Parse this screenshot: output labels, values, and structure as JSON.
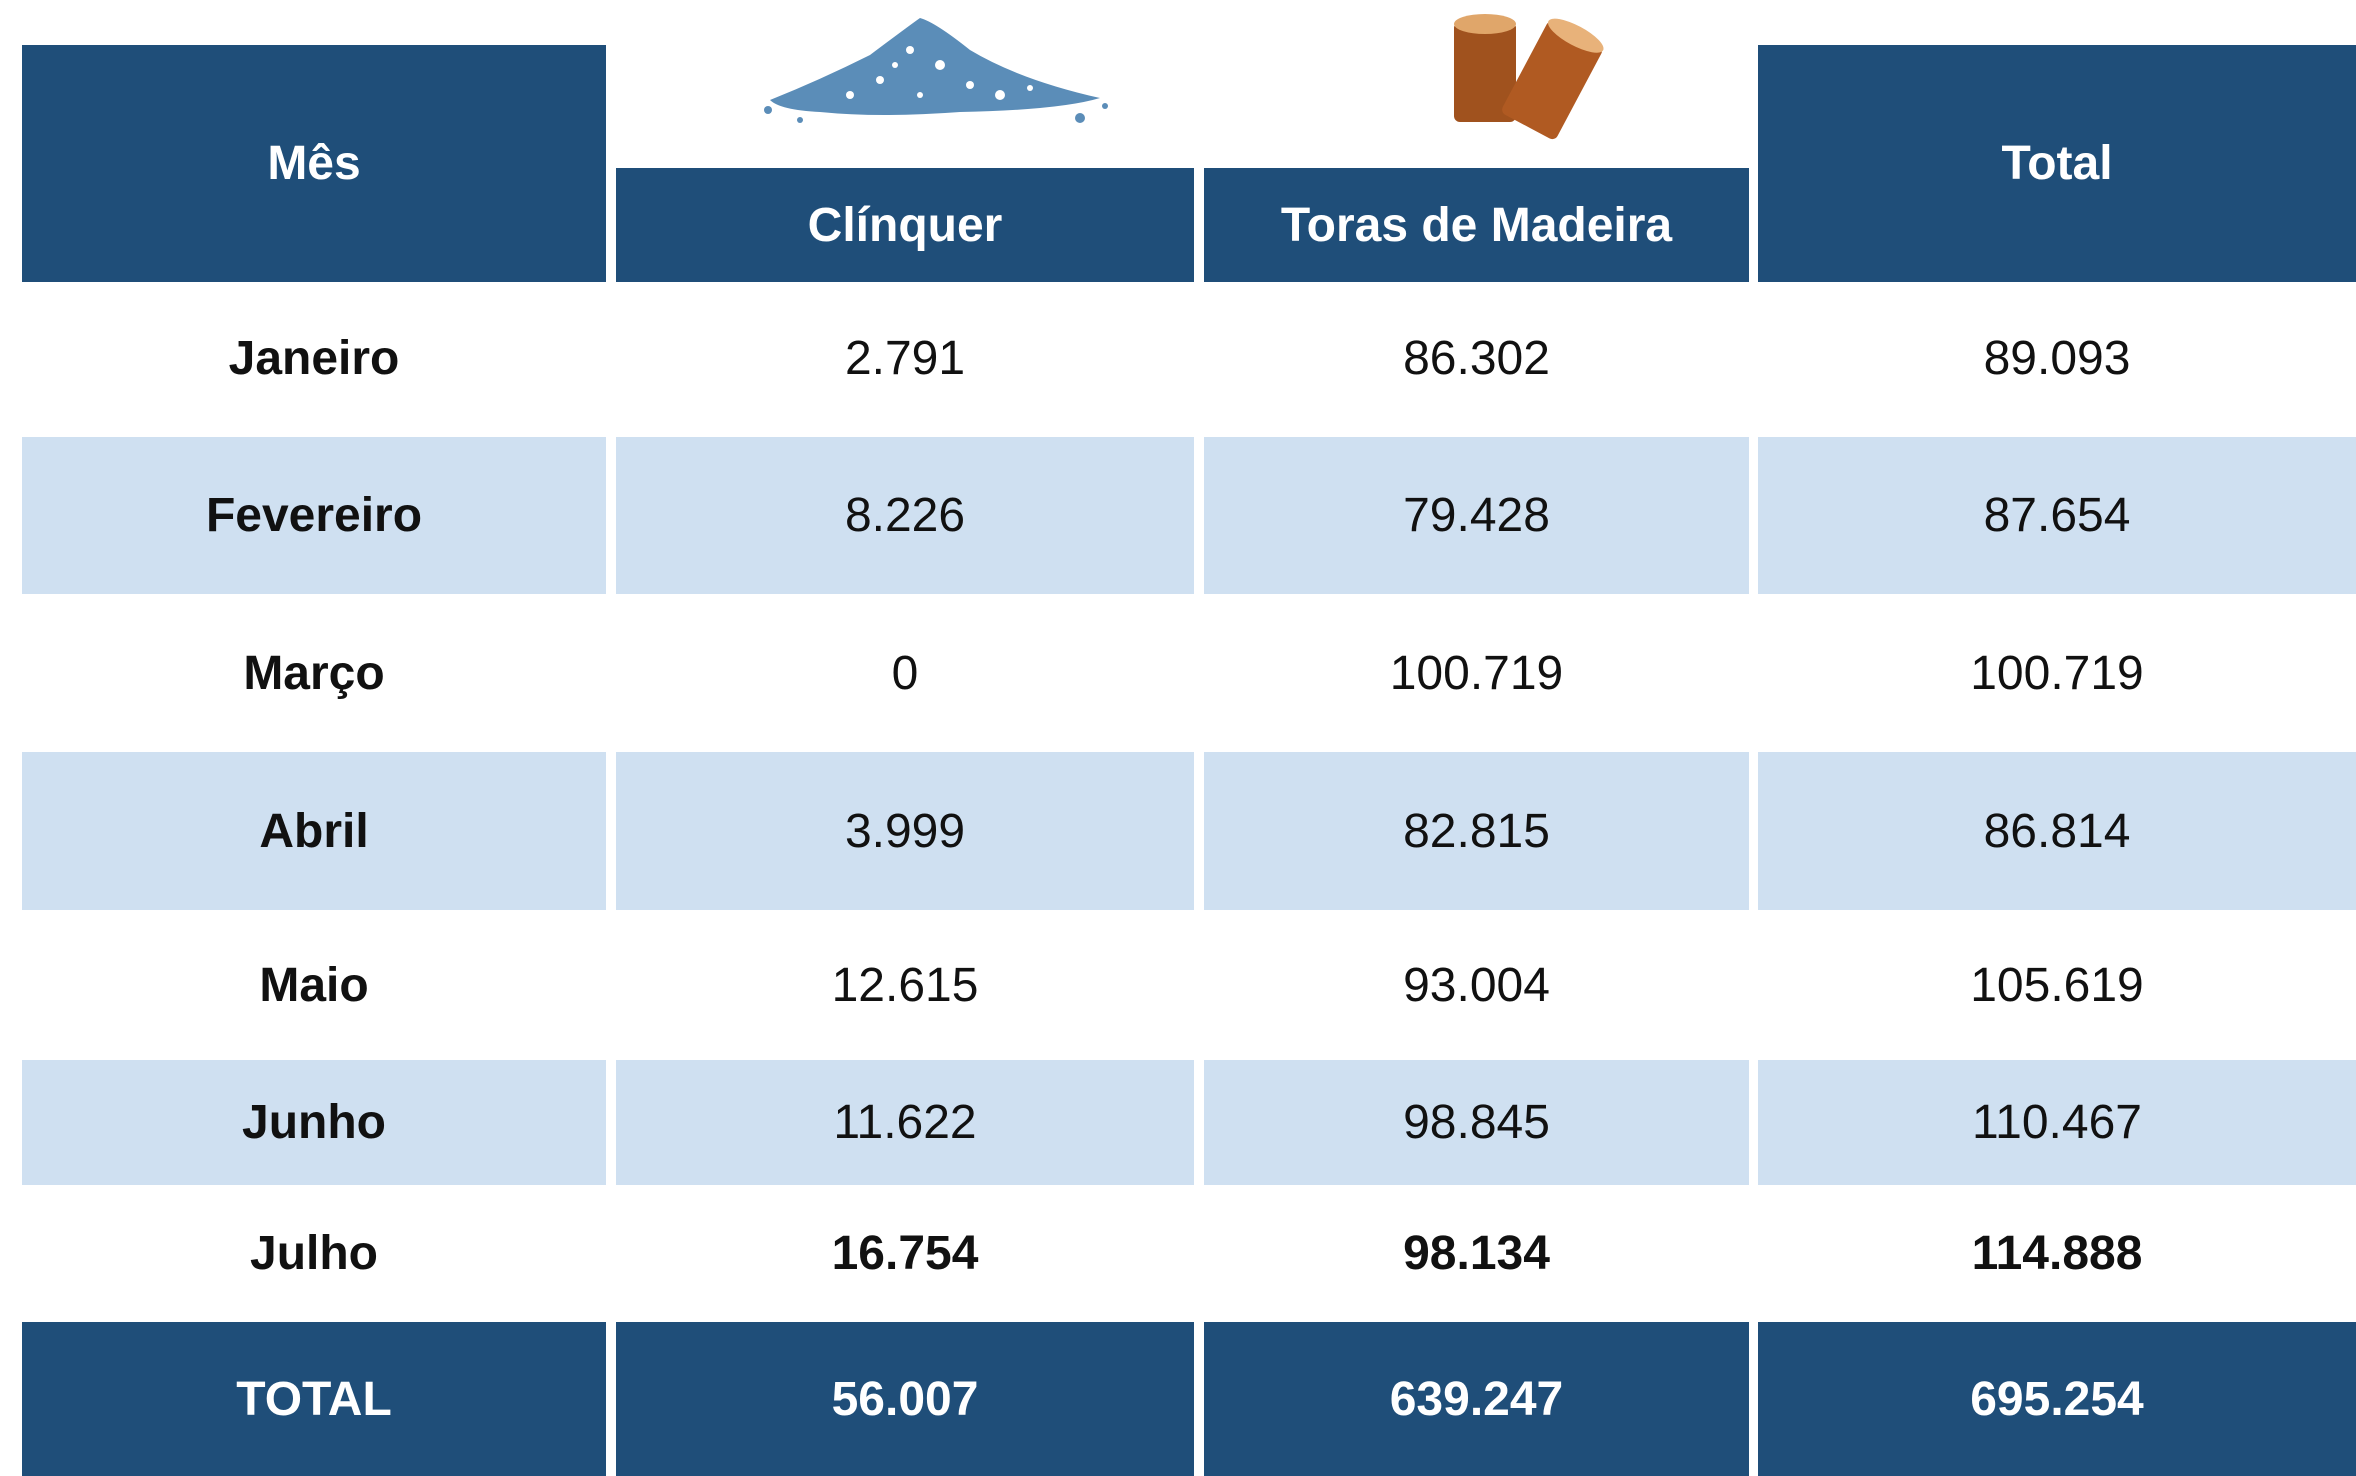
{
  "header": {
    "month": "Mês",
    "clinker": "Clínquer",
    "logs": "Toras de Madeira",
    "total": "Total"
  },
  "rows": [
    [
      "Janeiro",
      "2.791",
      "86.302",
      "89.093"
    ],
    [
      "Fevereiro",
      "8.226",
      "79.428",
      "87.654"
    ],
    [
      "Março",
      "0",
      "100.719",
      "100.719"
    ],
    [
      "Abril",
      "3.999",
      "82.815",
      "86.814"
    ],
    [
      "Maio",
      "12.615",
      "93.004",
      "105.619"
    ],
    [
      "Junho",
      "11.622",
      "98.845",
      "110.467"
    ],
    [
      "Julho",
      "16.754",
      "98.134",
      "114.888"
    ]
  ],
  "total_row": [
    "TOTAL",
    "56.007",
    "639.247",
    "695.254"
  ]
}
